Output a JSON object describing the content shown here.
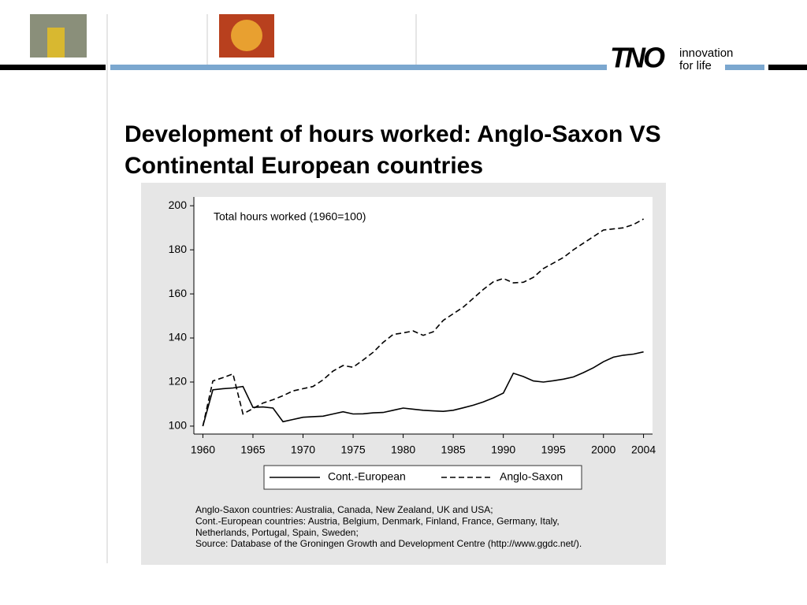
{
  "slide": {
    "title_lines": [
      "Development of hours worked: Anglo-Saxon VS",
      "Continental European countries"
    ],
    "logo": "TNO",
    "tagline_lines": [
      "innovation",
      "for life"
    ]
  },
  "chart_data": {
    "type": "line",
    "annotation": "Total hours worked (1960=100)",
    "x": [
      1960,
      1961,
      1962,
      1963,
      1964,
      1965,
      1966,
      1967,
      1968,
      1969,
      1970,
      1971,
      1972,
      1973,
      1974,
      1975,
      1976,
      1977,
      1978,
      1979,
      1980,
      1981,
      1982,
      1983,
      1984,
      1985,
      1986,
      1987,
      1988,
      1989,
      1990,
      1991,
      1992,
      1993,
      1994,
      1995,
      1996,
      1997,
      1998,
      1999,
      2000,
      2001,
      2002,
      2003,
      2004
    ],
    "series": [
      {
        "name": "Cont.-European",
        "color": "#000000",
        "dash": false,
        "values": [
          100,
          116.5,
          117,
          117.3,
          118,
          108.5,
          108.7,
          108.2,
          102,
          103,
          104,
          104.3,
          104.5,
          105.5,
          106.5,
          105.5,
          105.6,
          106,
          106.2,
          107.2,
          108.2,
          107.7,
          107.2,
          106.9,
          106.7,
          107.2,
          108.3,
          109.5,
          111,
          112.8,
          115,
          124,
          122.5,
          120.5,
          120,
          120.6,
          121.3,
          122.3,
          124.3,
          126.5,
          129.2,
          131.3,
          132.2,
          132.7,
          133.7
        ]
      },
      {
        "name": "Anglo-Saxon",
        "color": "#000000",
        "dash": true,
        "values": [
          100,
          120.5,
          122,
          123.7,
          105.5,
          108,
          110.5,
          112,
          113.8,
          116,
          117,
          118,
          121,
          125,
          127.5,
          126.7,
          130,
          133.5,
          138,
          141.6,
          142.3,
          143.2,
          141.2,
          142.8,
          148,
          151,
          154,
          158,
          162,
          165.5,
          167,
          165,
          165.3,
          167.5,
          171.5,
          174,
          176.5,
          180,
          183,
          186,
          189,
          189.5,
          190,
          191.5,
          194
        ]
      }
    ],
    "xlim": [
      1959.1,
      2004.9
    ],
    "xticks": [
      1960,
      1965,
      1970,
      1975,
      1980,
      1985,
      1990,
      1995,
      2000,
      2004
    ],
    "ylim": [
      96.4,
      204
    ],
    "yticks": [
      100,
      120,
      140,
      160,
      180,
      200
    ],
    "notes": [
      "Anglo-Saxon countries: Australia, Canada, New Zealand, UK and USA;",
      "Cont.-European countries: Austria, Belgium, Denmark, Finland, France, Germany, Italy,",
      "Netherlands, Portugal, Spain, Sweden;",
      "Source: Database of the Groningen Growth and Development Centre (http://www.ggdc.net/)."
    ]
  }
}
